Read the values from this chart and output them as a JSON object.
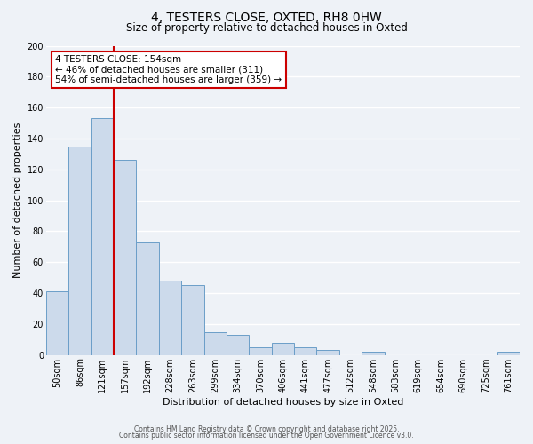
{
  "title": "4, TESTERS CLOSE, OXTED, RH8 0HW",
  "subtitle": "Size of property relative to detached houses in Oxted",
  "xlabel": "Distribution of detached houses by size in Oxted",
  "ylabel": "Number of detached properties",
  "bar_labels": [
    "50sqm",
    "86sqm",
    "121sqm",
    "157sqm",
    "192sqm",
    "228sqm",
    "263sqm",
    "299sqm",
    "334sqm",
    "370sqm",
    "406sqm",
    "441sqm",
    "477sqm",
    "512sqm",
    "548sqm",
    "583sqm",
    "619sqm",
    "654sqm",
    "690sqm",
    "725sqm",
    "761sqm"
  ],
  "bar_heights": [
    41,
    135,
    153,
    126,
    73,
    48,
    45,
    15,
    13,
    5,
    8,
    5,
    3,
    0,
    2,
    0,
    0,
    0,
    0,
    0,
    2
  ],
  "bar_color": "#ccdaeb",
  "bar_edge_color": "#6b9ec8",
  "vline_x": 2.5,
  "vline_color": "#cc0000",
  "annotation_title": "4 TESTERS CLOSE: 154sqm",
  "annotation_line1": "← 46% of detached houses are smaller (311)",
  "annotation_line2": "54% of semi-detached houses are larger (359) →",
  "annotation_box_facecolor": "#ffffff",
  "annotation_box_edgecolor": "#cc0000",
  "ylim": [
    0,
    200
  ],
  "yticks": [
    0,
    20,
    40,
    60,
    80,
    100,
    120,
    140,
    160,
    180,
    200
  ],
  "footer1": "Contains HM Land Registry data © Crown copyright and database right 2025.",
  "footer2": "Contains public sector information licensed under the Open Government Licence v3.0.",
  "fig_facecolor": "#eef2f7",
  "ax_facecolor": "#eef2f7",
  "grid_color": "#ffffff",
  "title_fontsize": 10,
  "subtitle_fontsize": 8.5,
  "axis_label_fontsize": 8,
  "tick_fontsize": 7,
  "annotation_fontsize": 7.5
}
